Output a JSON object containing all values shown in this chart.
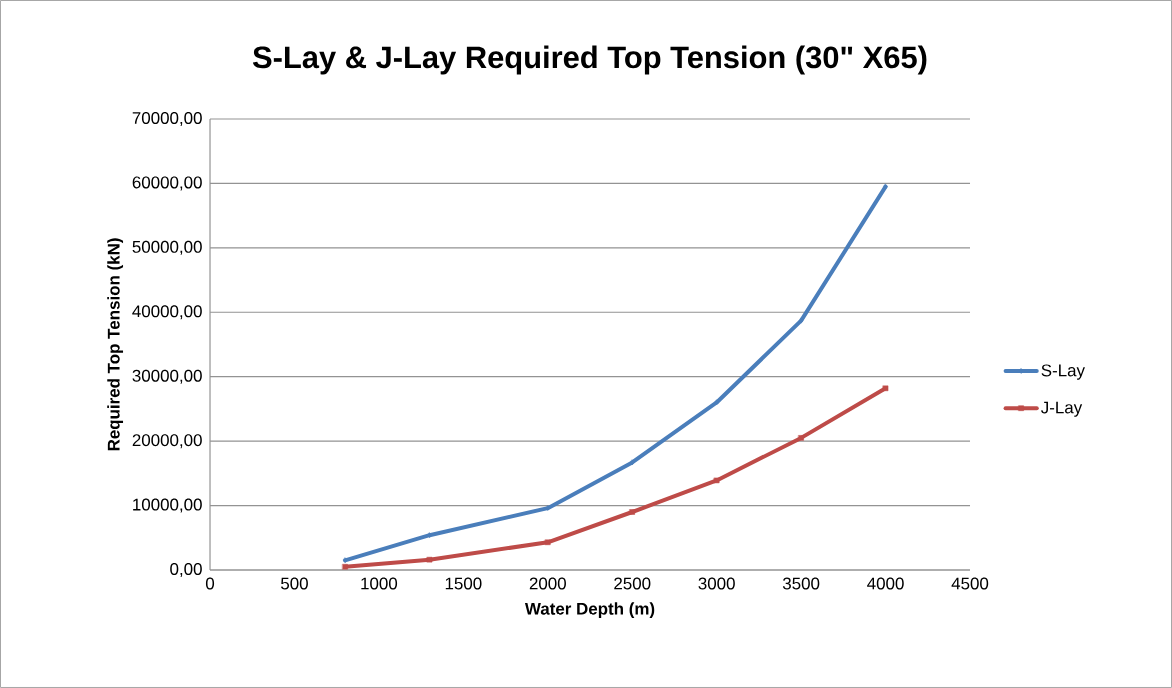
{
  "chart_data": {
    "type": "line",
    "title": "S-Lay & J-Lay Required Top Tension (30\" X65)",
    "xlabel": "Water Depth (m)",
    "ylabel": "Required Top Tension (kN)",
    "x": [
      800,
      1300,
      2000,
      2500,
      3000,
      3500,
      4000
    ],
    "series": [
      {
        "name": "S-Lay",
        "color": "#4a7ebb",
        "marker": "diamond",
        "values": [
          1500,
          5400,
          9600,
          16700,
          26000,
          38700,
          59500
        ]
      },
      {
        "name": "J-Lay",
        "color": "#be4b48",
        "marker": "square",
        "values": [
          500,
          1600,
          4300,
          9000,
          13900,
          20500,
          28200
        ]
      }
    ],
    "xlim": [
      0,
      4500
    ],
    "xticks": [
      0,
      500,
      1000,
      1500,
      2000,
      2500,
      3000,
      3500,
      4000,
      4500
    ],
    "ylim": [
      0,
      70000
    ],
    "yticks": [
      {
        "value": 0,
        "label": "0,00"
      },
      {
        "value": 10000,
        "label": "10000,00"
      },
      {
        "value": 20000,
        "label": "20000,00"
      },
      {
        "value": 30000,
        "label": "30000,00"
      },
      {
        "value": 40000,
        "label": "40000,00"
      },
      {
        "value": 50000,
        "label": "50000,00"
      },
      {
        "value": 60000,
        "label": "60000,00"
      },
      {
        "value": 70000,
        "label": "70000,00"
      }
    ],
    "grid": "y",
    "legend": "right",
    "line_style": "solid"
  }
}
